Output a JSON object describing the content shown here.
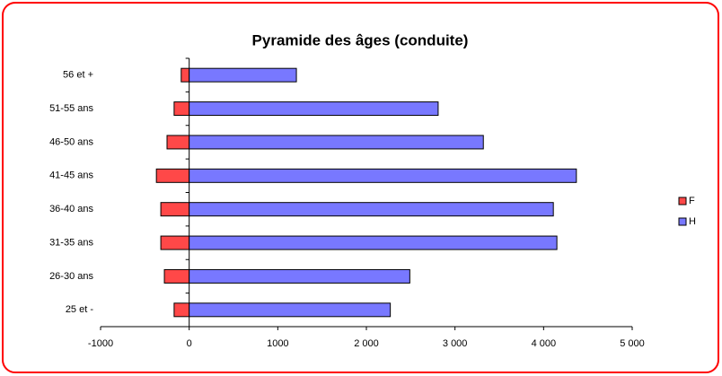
{
  "chart_data": {
    "type": "bar",
    "orientation": "horizontal",
    "title": "Pyramide des âges (conduite)",
    "categories": [
      "56 et +",
      "51-55 ans",
      "46-50 ans",
      "41-45 ans",
      "36-40 ans",
      "31-35 ans",
      "26-30 ans",
      "25 et -"
    ],
    "series": [
      {
        "name": "F",
        "color": "#ff4848",
        "values": [
          -90,
          -170,
          -250,
          -370,
          -320,
          -320,
          -280,
          -170
        ]
      },
      {
        "name": "H",
        "color": "#7878ff",
        "values": [
          1210,
          2810,
          3320,
          4370,
          4110,
          4150,
          2490,
          2270
        ]
      }
    ],
    "xlim": [
      -1000,
      5000
    ],
    "xticks": [
      -1000,
      0,
      1000,
      {
        "value": 2000,
        "label": "2 000"
      },
      {
        "value": 3000,
        "label": "3 000"
      },
      {
        "value": 4000,
        "label": "4 000"
      },
      {
        "value": 5000,
        "label": "5 000"
      }
    ],
    "legend": "right"
  }
}
